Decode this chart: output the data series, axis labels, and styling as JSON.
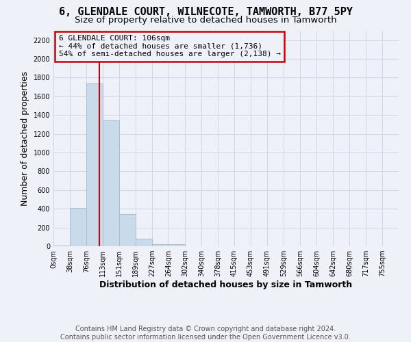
{
  "title1": "6, GLENDALE COURT, WILNECOTE, TAMWORTH, B77 5PY",
  "title2": "Size of property relative to detached houses in Tamworth",
  "xlabel": "Distribution of detached houses by size in Tamworth",
  "ylabel": "Number of detached properties",
  "footer1": "Contains HM Land Registry data © Crown copyright and database right 2024.",
  "footer2": "Contains public sector information licensed under the Open Government Licence v3.0.",
  "annotation_line1": "6 GLENDALE COURT: 106sqm",
  "annotation_line2": "← 44% of detached houses are smaller (1,736)",
  "annotation_line3": "54% of semi-detached houses are larger (2,138) →",
  "bin_labels": [
    "0sqm",
    "38sqm",
    "76sqm",
    "113sqm",
    "151sqm",
    "189sqm",
    "227sqm",
    "264sqm",
    "302sqm",
    "340sqm",
    "378sqm",
    "415sqm",
    "453sqm",
    "491sqm",
    "529sqm",
    "566sqm",
    "604sqm",
    "642sqm",
    "680sqm",
    "717sqm",
    "755sqm"
  ],
  "bar_values": [
    10,
    410,
    1740,
    1340,
    340,
    80,
    25,
    20,
    0,
    0,
    0,
    0,
    0,
    0,
    0,
    0,
    0,
    0,
    0,
    0
  ],
  "bar_color": "#c9daea",
  "bar_edge_color": "#a8bfcf",
  "property_line_x": 106,
  "bin_width": 38,
  "ylim": [
    0,
    2300
  ],
  "yticks": [
    0,
    200,
    400,
    600,
    800,
    1000,
    1200,
    1400,
    1600,
    1800,
    2000,
    2200
  ],
  "grid_color": "#d0d8e8",
  "bg_color": "#eef2f8",
  "annotation_box_color": "#cc0000",
  "red_line_color": "#cc0000",
  "title_fontsize": 11,
  "subtitle_fontsize": 9.5,
  "axis_label_fontsize": 9,
  "tick_fontsize": 7,
  "annotation_fontsize": 8,
  "footer_fontsize": 7
}
